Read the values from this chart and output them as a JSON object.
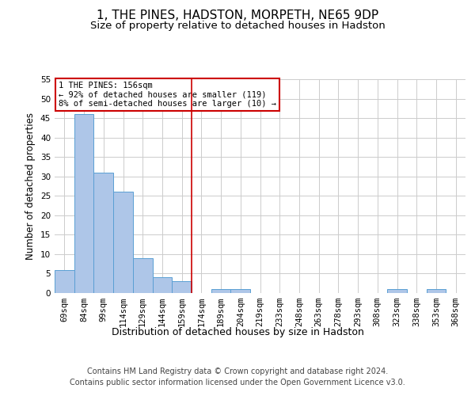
{
  "title": "1, THE PINES, HADSTON, MORPETH, NE65 9DP",
  "subtitle": "Size of property relative to detached houses in Hadston",
  "xlabel": "Distribution of detached houses by size in Hadston",
  "ylabel": "Number of detached properties",
  "categories": [
    "69sqm",
    "84sqm",
    "99sqm",
    "114sqm",
    "129sqm",
    "144sqm",
    "159sqm",
    "174sqm",
    "189sqm",
    "204sqm",
    "219sqm",
    "233sqm",
    "248sqm",
    "263sqm",
    "278sqm",
    "293sqm",
    "308sqm",
    "323sqm",
    "338sqm",
    "353sqm",
    "368sqm"
  ],
  "values": [
    6,
    46,
    31,
    26,
    9,
    4,
    3,
    0,
    1,
    1,
    0,
    0,
    0,
    0,
    0,
    0,
    0,
    1,
    0,
    1,
    0
  ],
  "bar_color": "#aec6e8",
  "bar_edge_color": "#5a9fd4",
  "reference_line_index": 6,
  "annotation_line1": "1 THE PINES: 156sqm",
  "annotation_line2": "← 92% of detached houses are smaller (119)",
  "annotation_line3": "8% of semi-detached houses are larger (10) →",
  "annotation_box_color": "#ffffff",
  "annotation_box_edge_color": "#cc0000",
  "ylim": [
    0,
    55
  ],
  "yticks": [
    0,
    5,
    10,
    15,
    20,
    25,
    30,
    35,
    40,
    45,
    50,
    55
  ],
  "footer_line1": "Contains HM Land Registry data © Crown copyright and database right 2024.",
  "footer_line2": "Contains public sector information licensed under the Open Government Licence v3.0.",
  "bg_color": "#ffffff",
  "grid_color": "#cccccc",
  "title_fontsize": 11,
  "subtitle_fontsize": 9.5,
  "ylabel_fontsize": 8.5,
  "xlabel_fontsize": 9,
  "tick_fontsize": 7.5,
  "annotation_fontsize": 7.5,
  "footer_fontsize": 7
}
